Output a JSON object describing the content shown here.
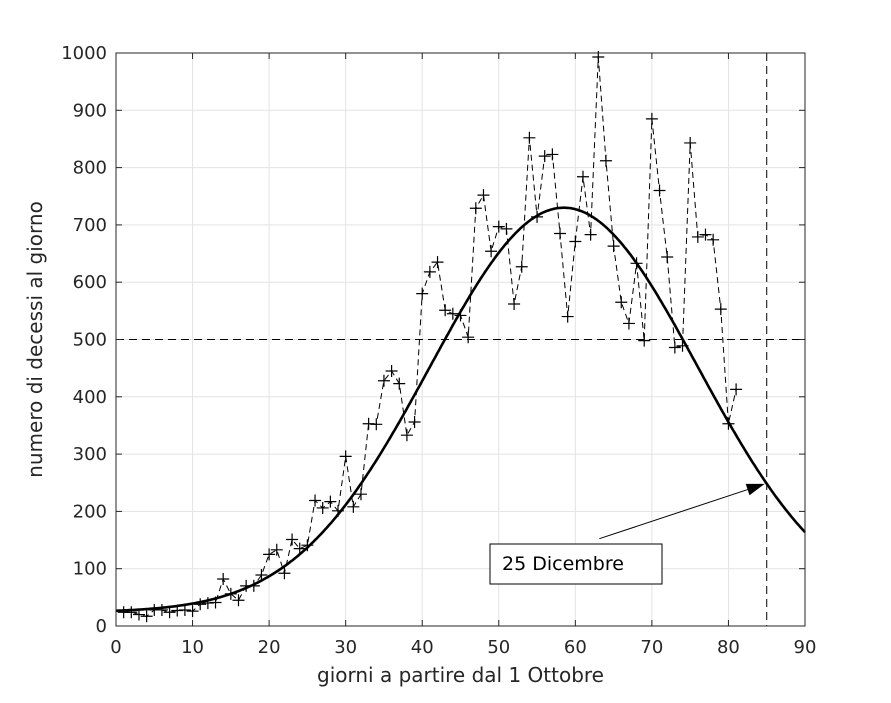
{
  "chart_data": {
    "type": "line",
    "title": "",
    "xlabel": "giorni a partire dal 1 Ottobre",
    "ylabel": "numero di decessi al giorno",
    "xlim": [
      0,
      90
    ],
    "ylim": [
      0,
      1000
    ],
    "xticks": [
      0,
      10,
      20,
      30,
      40,
      50,
      60,
      70,
      80,
      90
    ],
    "yticks": [
      0,
      100,
      200,
      300,
      400,
      500,
      600,
      700,
      800,
      900,
      1000
    ],
    "grid": true,
    "series": [
      {
        "style": "dashed-markers",
        "marker": "plus",
        "x": [
          1,
          2,
          3,
          4,
          5,
          6,
          7,
          8,
          9,
          10,
          11,
          12,
          13,
          14,
          15,
          16,
          17,
          18,
          19,
          20,
          21,
          22,
          23,
          24,
          25,
          26,
          27,
          28,
          29,
          30,
          31,
          32,
          33,
          34,
          35,
          36,
          37,
          38,
          39,
          40,
          41,
          42,
          43,
          44,
          45,
          46,
          47,
          48,
          49,
          50,
          51,
          52,
          53,
          54,
          55,
          56,
          57,
          58,
          59,
          60,
          61,
          62,
          63,
          64,
          65,
          66,
          67,
          68,
          69,
          70,
          71,
          72,
          73,
          74,
          75,
          76,
          77,
          78,
          79,
          80,
          81
        ],
        "values": [
          24,
          24,
          20,
          17,
          28,
          28,
          24,
          27,
          28,
          26,
          38,
          40,
          41,
          82,
          56,
          45,
          70,
          70,
          89,
          125,
          133,
          92,
          151,
          135,
          141,
          219,
          206,
          217,
          201,
          296,
          208,
          230,
          353,
          352,
          428,
          445,
          423,
          333,
          356,
          580,
          618,
          635,
          551,
          545,
          542,
          504,
          729,
          752,
          654,
          697,
          693,
          562,
          627,
          852,
          714,
          820,
          823,
          685,
          540,
          671,
          784,
          683,
          993,
          812,
          663,
          565,
          528,
          633,
          498,
          885,
          760,
          644,
          486,
          489,
          843,
          679,
          683,
          674,
          553,
          353,
          413
        ]
      },
      {
        "style": "solid",
        "fit": "gaussian",
        "amplitude": 706,
        "center": 58.5,
        "sigma": 17.5,
        "offset": 24
      }
    ],
    "reference_lines": {
      "y": 500,
      "x": 85
    },
    "annotations": [
      {
        "text": "25 Dicembre",
        "target": [
          85,
          248
        ],
        "anchor": [
          60,
          100
        ]
      }
    ]
  }
}
